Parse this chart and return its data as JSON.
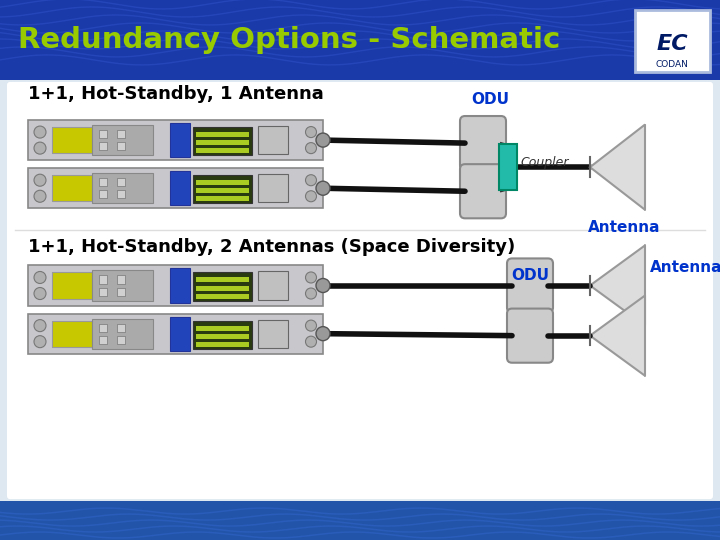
{
  "title": "Redundancy Options - Schematic",
  "title_color": "#99cc00",
  "header_bg": "#1a3aaa",
  "wave_color": "#3355cc",
  "body_bg": "#ffffff",
  "outer_bg": "#dde8f0",
  "footer_bg": "#2255aa",
  "section1_label": "1+1, Hot-Standby, 1 Antenna",
  "section1_odu_label": "ODU",
  "section1_coupler_label": "Coupler",
  "section1_antenna_label": "Antenna",
  "section2_label": "1+1, Hot-Standby, 2 Antennas (Space Diversity)",
  "section2_odu_label": "ODU",
  "section2_antenna_label": "Antenna",
  "idu_body": "#c8c8cc",
  "idu_border": "#888888",
  "idu_left_panel": "#b0b0b4",
  "idu_btn_area": "#aaaaaa",
  "idu_blue_mod": "#2244bb",
  "idu_screen_bg": "#2a3a10",
  "idu_screen_line": "#aacc22",
  "idu_right_panel": "#bbbbbb",
  "coupler_color": "#22bbaa",
  "coupler_border": "#008866",
  "odu_color": "#cccccc",
  "odu_border": "#888888",
  "antenna_color": "#dddddd",
  "antenna_border": "#999999",
  "line_color": "#111111",
  "label_blue": "#0033cc",
  "label_italic": "#333333",
  "logo_border": "#aabbdd",
  "logo_text": "#001a66"
}
